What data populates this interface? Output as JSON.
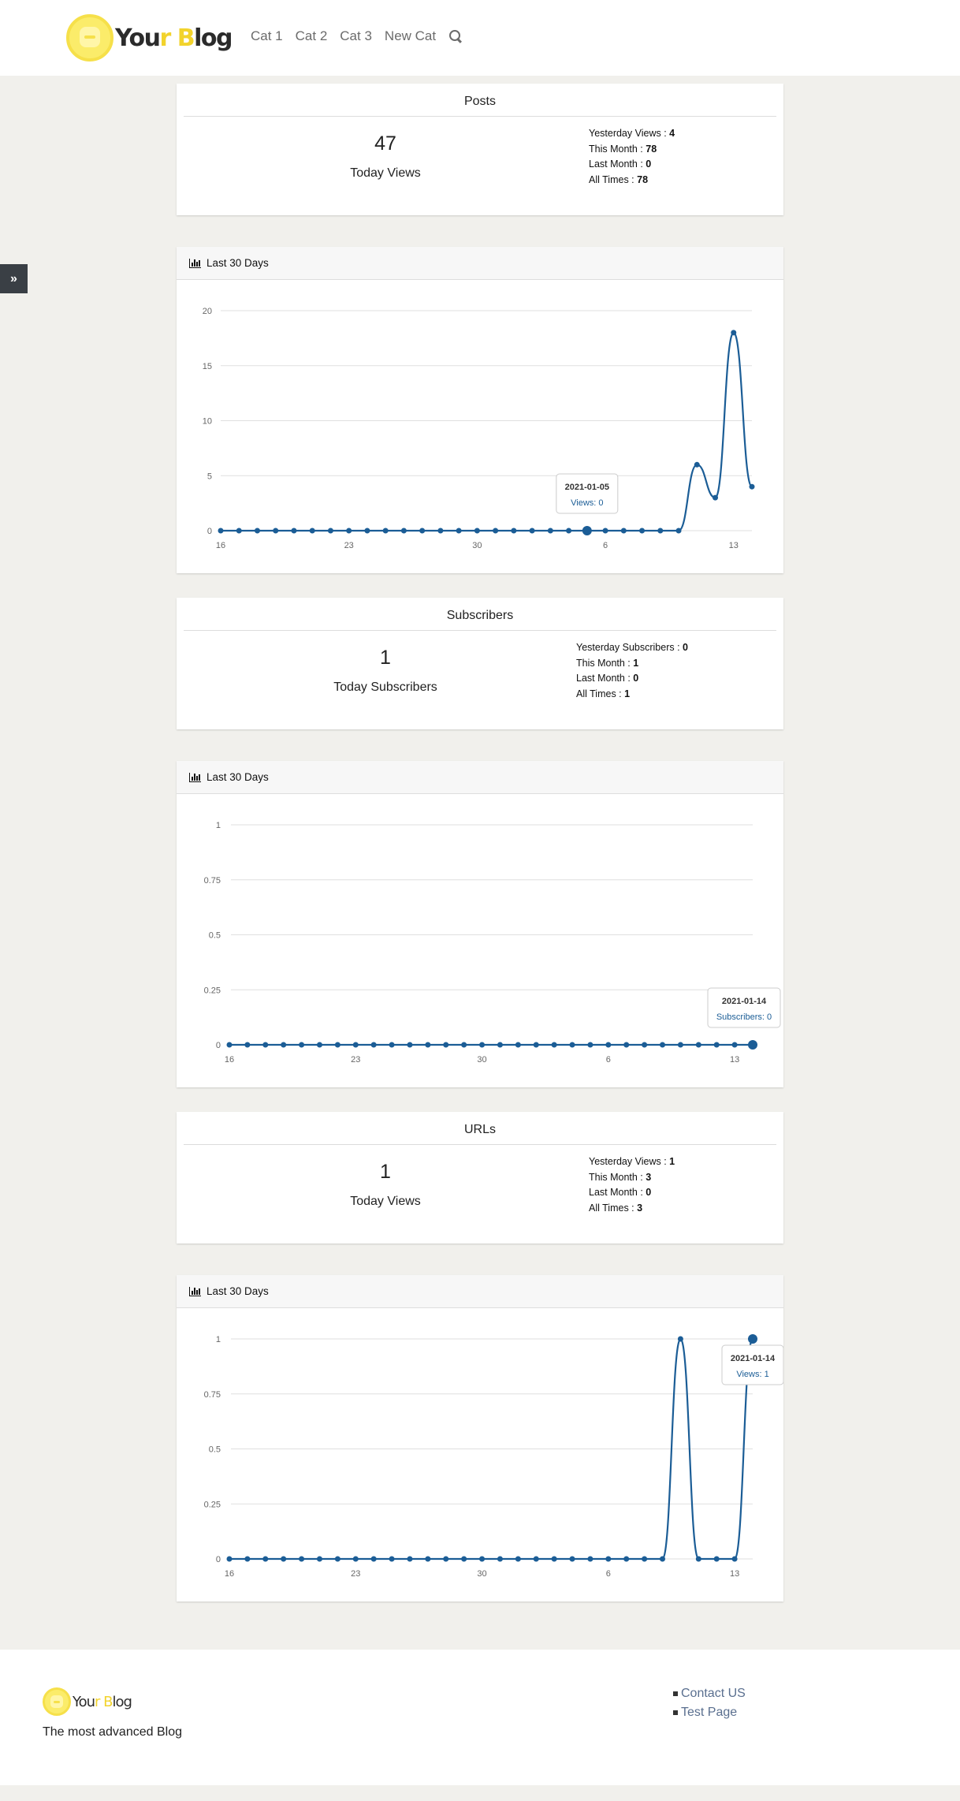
{
  "header": {
    "logo": {
      "text_a": "You",
      "text_y": "r",
      "text_b": " ",
      "text_c": "B",
      "text_d": "log"
    },
    "nav": [
      {
        "label": "Cat 1"
      },
      {
        "label": "Cat 2"
      },
      {
        "label": "Cat 3"
      },
      {
        "label": "New Cat"
      }
    ],
    "search_icon": "search-icon"
  },
  "sidebar_toggle": {
    "label": "»"
  },
  "sections": {
    "posts": {
      "title": "Posts",
      "today_value": "47",
      "today_label": "Today Views",
      "stats": [
        {
          "label": "Yesterday Views : ",
          "value": "4"
        },
        {
          "label": "This Month : ",
          "value": "78"
        },
        {
          "label": "Last Month : ",
          "value": "0"
        },
        {
          "label": "All Times : ",
          "value": "78"
        }
      ]
    },
    "subscribers": {
      "title": "Subscribers",
      "today_value": "1",
      "today_label": "Today Subscribers",
      "stats": [
        {
          "label": "Yesterday Subscribers : ",
          "value": "0"
        },
        {
          "label": "This Month : ",
          "value": "1"
        },
        {
          "label": "Last Month : ",
          "value": "0"
        },
        {
          "label": "All Times : ",
          "value": "1"
        }
      ]
    },
    "urls": {
      "title": "URLs",
      "today_value": "1",
      "today_label": "Today Views",
      "stats": [
        {
          "label": "Yesterday Views : ",
          "value": "1"
        },
        {
          "label": "This Month : ",
          "value": "3"
        },
        {
          "label": "Last Month : ",
          "value": "0"
        },
        {
          "label": "All Times : ",
          "value": "3"
        }
      ]
    }
  },
  "chart_header_label": "Last 30 Days",
  "chart_data": [
    {
      "type": "line",
      "x_tick_labels": [
        "16",
        "23",
        "30",
        "6",
        "13"
      ],
      "y_ticks": [
        "0",
        "5",
        "10",
        "15",
        "20"
      ],
      "ylim": [
        0,
        20
      ],
      "series": [
        {
          "values": [
            0,
            0,
            0,
            0,
            0,
            0,
            0,
            0,
            0,
            0,
            0,
            0,
            0,
            0,
            0,
            0,
            0,
            0,
            0,
            0,
            0,
            0,
            0,
            0,
            0,
            0,
            6,
            3,
            18,
            4
          ]
        }
      ],
      "tooltip": {
        "index": 20,
        "date": "2021-01-05",
        "text": "Views: 0"
      },
      "color": "#1b5d96"
    },
    {
      "type": "line",
      "x_tick_labels": [
        "16",
        "23",
        "30",
        "6",
        "13"
      ],
      "y_ticks": [
        "0",
        "0.25",
        "0.5",
        "0.75",
        "1"
      ],
      "ylim": [
        0,
        1
      ],
      "series": [
        {
          "values": [
            0,
            0,
            0,
            0,
            0,
            0,
            0,
            0,
            0,
            0,
            0,
            0,
            0,
            0,
            0,
            0,
            0,
            0,
            0,
            0,
            0,
            0,
            0,
            0,
            0,
            0,
            0,
            0,
            0,
            0
          ]
        }
      ],
      "tooltip": {
        "index": 29,
        "date": "2021-01-14",
        "text": "Subscribers: 0"
      },
      "color": "#1b5d96"
    },
    {
      "type": "line",
      "x_tick_labels": [
        "16",
        "23",
        "30",
        "6",
        "13"
      ],
      "y_ticks": [
        "0",
        "0.25",
        "0.5",
        "0.75",
        "1"
      ],
      "ylim": [
        0,
        1
      ],
      "series": [
        {
          "values": [
            0,
            0,
            0,
            0,
            0,
            0,
            0,
            0,
            0,
            0,
            0,
            0,
            0,
            0,
            0,
            0,
            0,
            0,
            0,
            0,
            0,
            0,
            0,
            0,
            0,
            1,
            0,
            0,
            0,
            1
          ]
        }
      ],
      "tooltip": {
        "index": 29,
        "date": "2021-01-14",
        "text": "Views: 1"
      },
      "color": "#1b5d96"
    }
  ],
  "footer": {
    "tagline": "The most advanced Blog",
    "links": [
      {
        "label": "Contact US"
      },
      {
        "label": "Test Page"
      }
    ]
  }
}
